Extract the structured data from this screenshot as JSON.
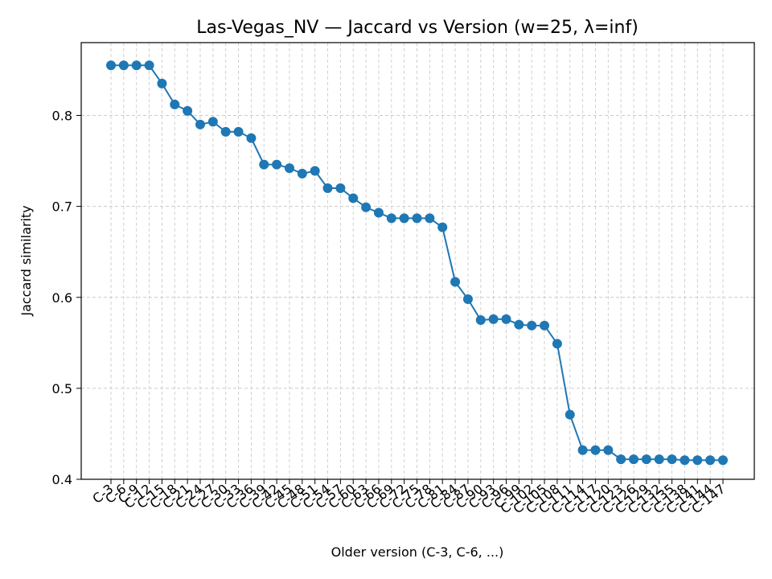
{
  "chart_data": {
    "type": "line",
    "title": "Las-Vegas_NV — Jaccard vs Version (w=25, λ=inf)",
    "xlabel": "Older version (C-3, C-6, ...)",
    "ylabel": "Jaccard similarity",
    "ylim": [
      0.4,
      0.88
    ],
    "yticks": [
      "0.4",
      "0.5",
      "0.6",
      "0.7",
      "0.8"
    ],
    "grid": true,
    "marker": "circle",
    "line_color": "#1f77b4",
    "categories": [
      "C-3",
      "C-6",
      "C-9",
      "C-12",
      "C-15",
      "C-18",
      "C-21",
      "C-24",
      "C-27",
      "C-30",
      "C-33",
      "C-36",
      "C-39",
      "C-42",
      "C-45",
      "C-48",
      "C-51",
      "C-54",
      "C-57",
      "C-60",
      "C-63",
      "C-66",
      "C-69",
      "C-72",
      "C-75",
      "C-78",
      "C-81",
      "C-84",
      "C-87",
      "C-90",
      "C-93",
      "C-96",
      "C-99",
      "C-102",
      "C-105",
      "C-108",
      "C-111",
      "C-114",
      "C-117",
      "C-120",
      "C-123",
      "C-126",
      "C-129",
      "C-132",
      "C-135",
      "C-138",
      "C-141",
      "C-144",
      "C-147"
    ],
    "values": [
      0.855,
      0.855,
      0.855,
      0.855,
      0.835,
      0.812,
      0.805,
      0.79,
      0.793,
      0.782,
      0.782,
      0.775,
      0.746,
      0.746,
      0.742,
      0.736,
      0.739,
      0.72,
      0.72,
      0.709,
      0.699,
      0.693,
      0.687,
      0.687,
      0.687,
      0.687,
      0.677,
      0.617,
      0.598,
      0.575,
      0.576,
      0.576,
      0.57,
      0.569,
      0.569,
      0.549,
      0.471,
      0.432,
      0.432,
      0.432,
      0.422,
      0.422,
      0.422,
      0.422,
      0.422,
      0.421,
      0.421,
      0.421,
      0.421
    ]
  }
}
